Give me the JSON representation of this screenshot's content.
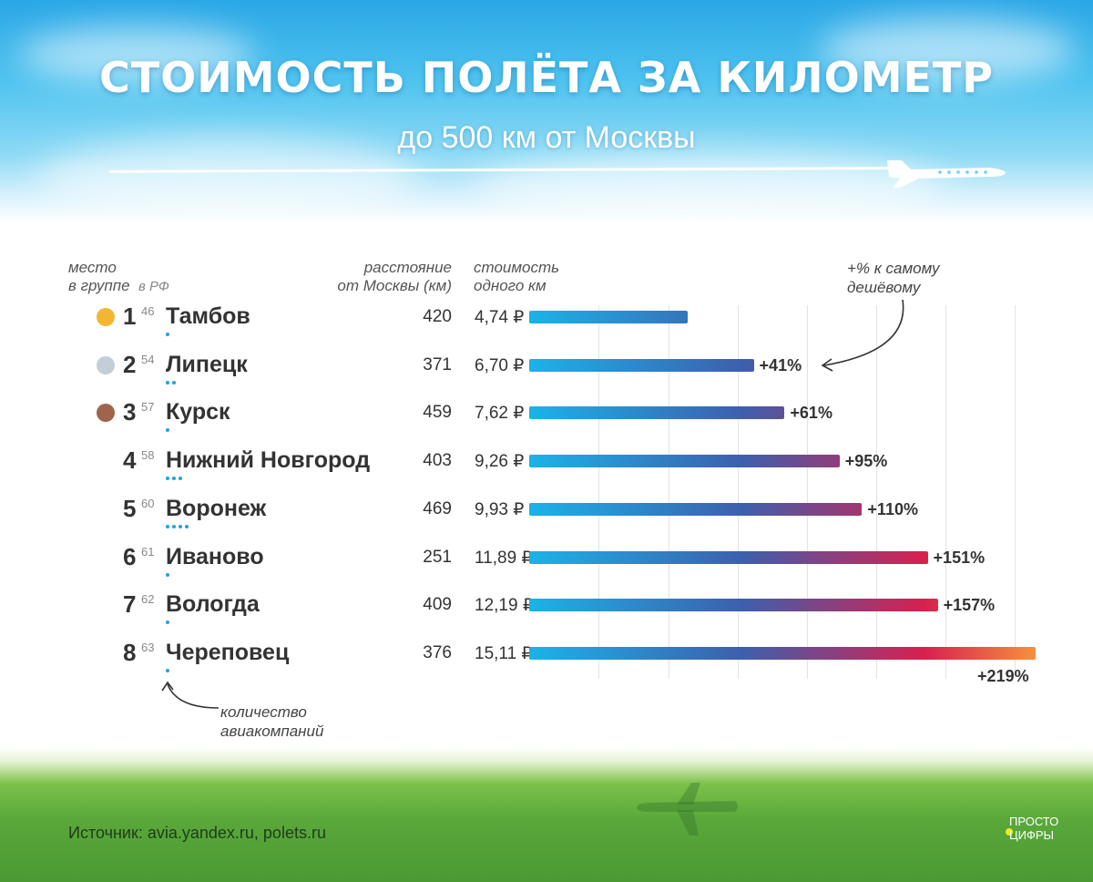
{
  "title": "СТОИМОСТЬ ПОЛЁТА ЗА КИЛОМЕТР",
  "subtitle": "до 500 км от Москвы",
  "headers": {
    "place_line1": "место",
    "place_line2a": "в группе",
    "place_line2b": "в РФ",
    "distance_line1": "расстояние",
    "distance_line2": "от Москвы (км)",
    "cost_line1": "стоимость",
    "cost_line2": "одного км"
  },
  "annotations": {
    "pct_line1": "+% к самому",
    "pct_line2": "дешёвому",
    "airlines_line1": "количество",
    "airlines_line2": "авиакомпаний"
  },
  "colors": {
    "gold": "#f2b632",
    "silver": "#c3ced6",
    "bronze": "#a0634c",
    "bar_start": "#1bb3e8",
    "bar_mid": "#3d5fae",
    "bar_red": "#d8204f",
    "bar_end": "#f7903c"
  },
  "chart_data": {
    "type": "bar",
    "orientation": "horizontal",
    "value_unit": "₽",
    "grid": true,
    "rows": [
      {
        "rank": "1",
        "rf_rank": "46",
        "city": "Тамбов",
        "distance": "420",
        "cost_label": "4,74 ₽",
        "cost": 4.74,
        "airlines": 1,
        "pct": "",
        "medal": "gold"
      },
      {
        "rank": "2",
        "rf_rank": "54",
        "city": "Липецк",
        "distance": "371",
        "cost_label": "6,70 ₽",
        "cost": 6.7,
        "airlines": 2,
        "pct": "+41%",
        "medal": "silver"
      },
      {
        "rank": "3",
        "rf_rank": "57",
        "city": "Курск",
        "distance": "459",
        "cost_label": "7,62 ₽",
        "cost": 7.62,
        "airlines": 1,
        "pct": "+61%",
        "medal": "bronze"
      },
      {
        "rank": "4",
        "rf_rank": "58",
        "city": "Нижний Новгород",
        "distance": "403",
        "cost_label": "9,26 ₽",
        "cost": 9.26,
        "airlines": 3,
        "pct": "+95%",
        "medal": ""
      },
      {
        "rank": "5",
        "rf_rank": "60",
        "city": "Воронеж",
        "distance": "469",
        "cost_label": "9,93 ₽",
        "cost": 9.93,
        "airlines": 4,
        "pct": "+110%",
        "medal": ""
      },
      {
        "rank": "6",
        "rf_rank": "61",
        "city": "Иваново",
        "distance": "251",
        "cost_label": "11,89 ₽",
        "cost": 11.89,
        "airlines": 1,
        "pct": "+151%",
        "medal": ""
      },
      {
        "rank": "7",
        "rf_rank": "62",
        "city": "Вологда",
        "distance": "409",
        "cost_label": "12,19 ₽",
        "cost": 12.19,
        "airlines": 1,
        "pct": "+157%",
        "medal": ""
      },
      {
        "rank": "8",
        "rf_rank": "63",
        "city": "Череповец",
        "distance": "376",
        "cost_label": "15,11 ₽",
        "cost": 15.11,
        "airlines": 1,
        "pct": "+219%",
        "medal": ""
      }
    ]
  },
  "source": "Источник: avia.yandex.ru, polets.ru",
  "logo_line1": "ПРОСТО",
  "logo_line2": "ЦИФРЫ"
}
